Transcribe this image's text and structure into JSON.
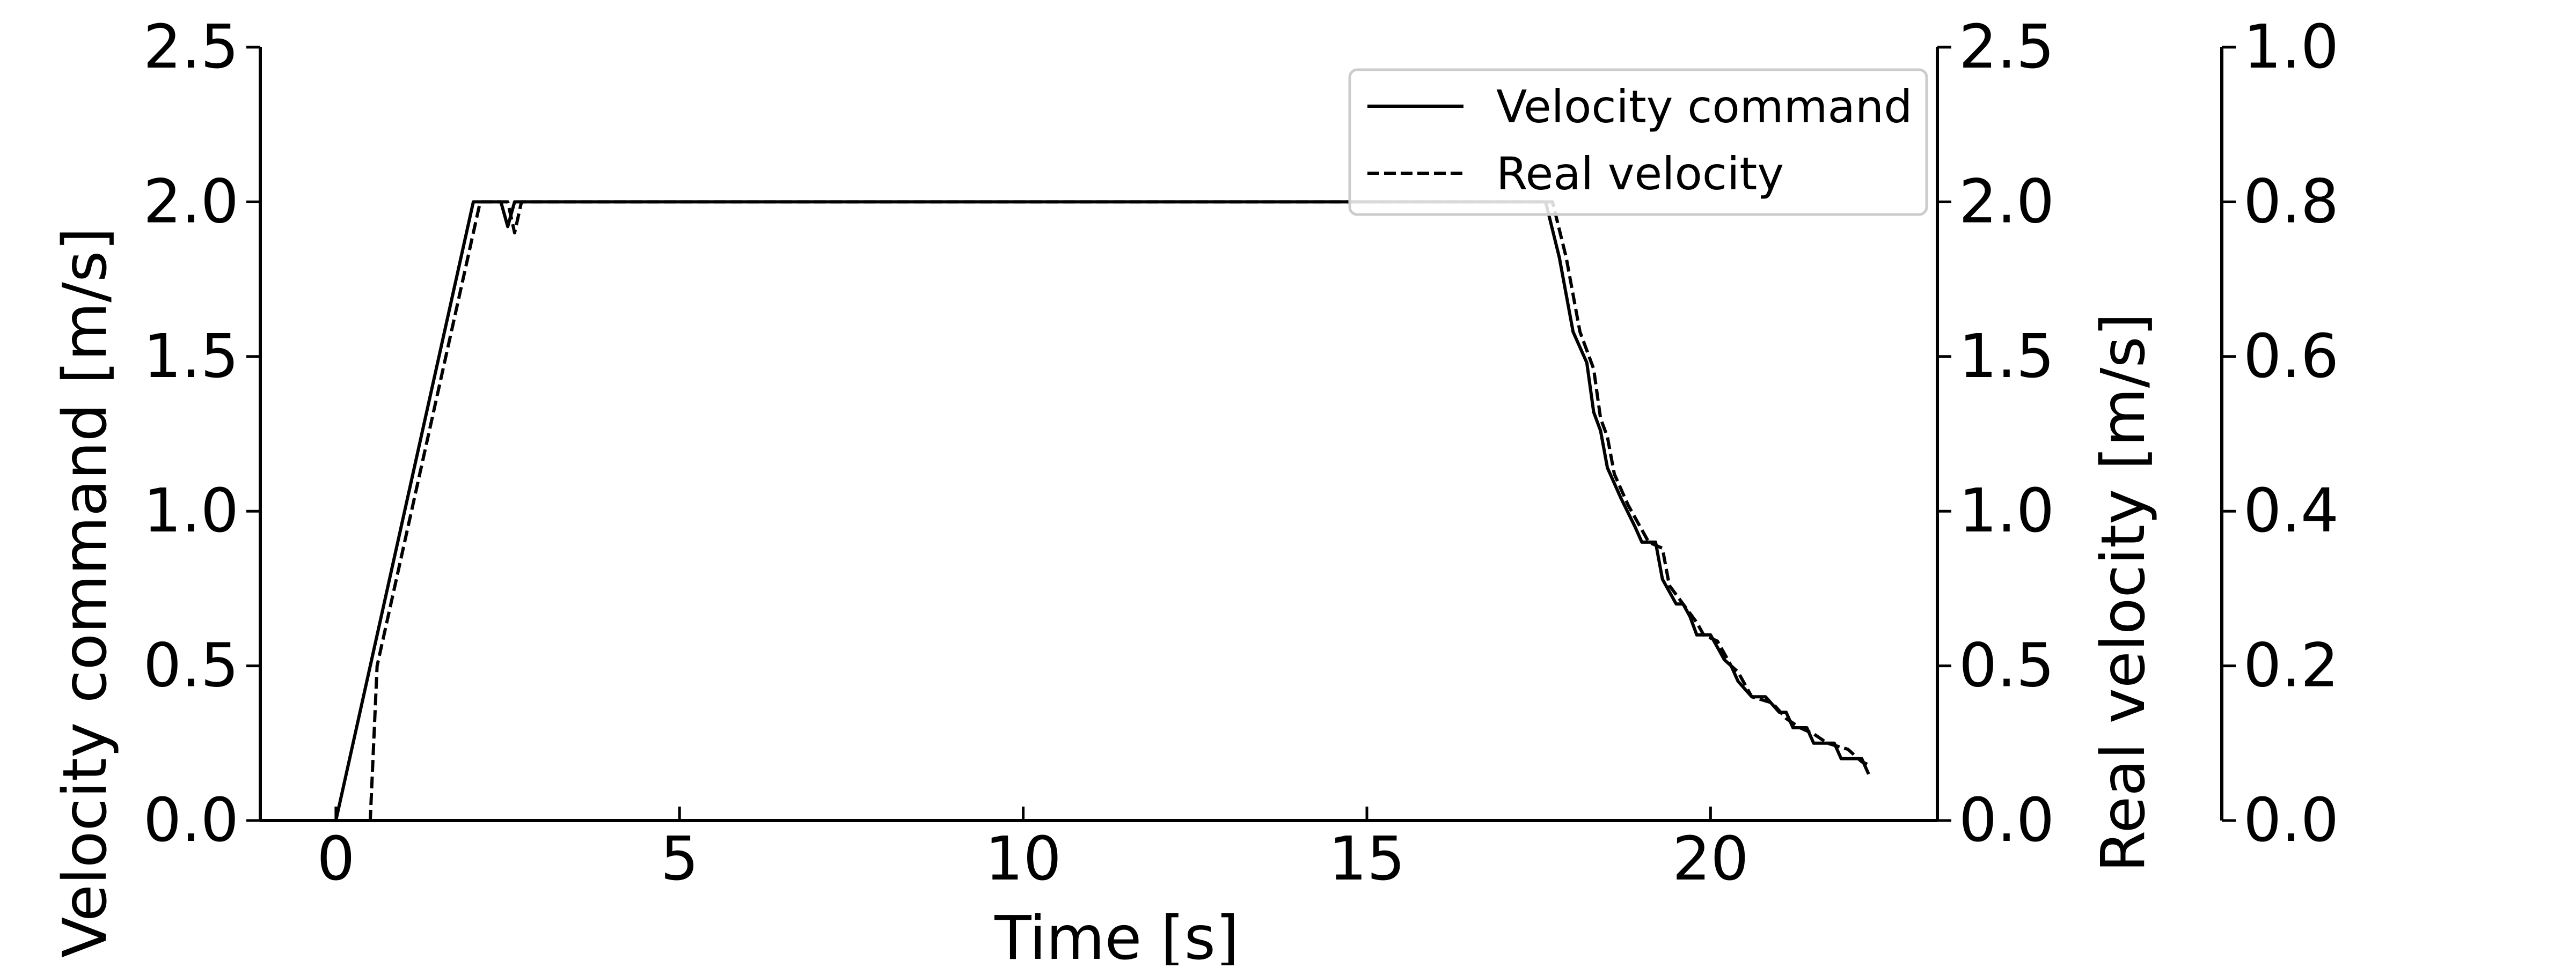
{
  "chart_data": {
    "type": "line",
    "title": "",
    "xlabel": "Time [s]",
    "ylabel": "Velocity command [m/s]",
    "ylabel_right": "Real velocity [m/s]",
    "xlim": [
      -1.1,
      23.3
    ],
    "ylim": [
      0,
      2.5
    ],
    "ylim_right": [
      0,
      2.5
    ],
    "ylim_outer": [
      0,
      1.0
    ],
    "x_ticks": [
      "0",
      "5",
      "10",
      "15",
      "20"
    ],
    "y_ticks": [
      "0.0",
      "0.5",
      "1.0",
      "1.5",
      "2.0",
      "2.5"
    ],
    "y_right_ticks": [
      "0.0",
      "0.5",
      "1.0",
      "1.5",
      "2.0",
      "2.5"
    ],
    "y_outer_ticks": [
      "0.0",
      "0.2",
      "0.4",
      "0.6",
      "0.8",
      "1.0"
    ],
    "grid": false,
    "legend": {
      "position": "top-right"
    },
    "series": [
      {
        "name": "Velocity command",
        "style": "solid",
        "color": "#000000",
        "points": [
          [
            0.0,
            0.0
          ],
          [
            2.0,
            2.0
          ],
          [
            2.4,
            2.0
          ],
          [
            2.5,
            1.92
          ],
          [
            2.6,
            2.0
          ],
          [
            17.6,
            2.0
          ],
          [
            17.8,
            1.82
          ],
          [
            18.0,
            1.58
          ],
          [
            18.2,
            1.48
          ],
          [
            18.3,
            1.32
          ],
          [
            18.4,
            1.26
          ],
          [
            18.5,
            1.14
          ],
          [
            18.7,
            1.04
          ],
          [
            18.9,
            0.95
          ],
          [
            19.0,
            0.9
          ],
          [
            19.2,
            0.9
          ],
          [
            19.3,
            0.78
          ],
          [
            19.5,
            0.7
          ],
          [
            19.6,
            0.7
          ],
          [
            19.7,
            0.66
          ],
          [
            19.8,
            0.6
          ],
          [
            20.0,
            0.6
          ],
          [
            20.2,
            0.52
          ],
          [
            20.3,
            0.5
          ],
          [
            20.4,
            0.45
          ],
          [
            20.6,
            0.4
          ],
          [
            20.8,
            0.4
          ],
          [
            21.0,
            0.35
          ],
          [
            21.1,
            0.35
          ],
          [
            21.2,
            0.3
          ],
          [
            21.4,
            0.3
          ],
          [
            21.5,
            0.25
          ],
          [
            21.8,
            0.25
          ],
          [
            21.9,
            0.2
          ],
          [
            22.2,
            0.2
          ],
          [
            22.3,
            0.15
          ]
        ]
      },
      {
        "name": "Real velocity",
        "style": "dashed",
        "color": "#000000",
        "points": [
          [
            0.0,
            0.0
          ],
          [
            0.5,
            0.0
          ],
          [
            0.6,
            0.5
          ],
          [
            2.1,
            2.0
          ],
          [
            2.5,
            2.0
          ],
          [
            2.6,
            1.9
          ],
          [
            2.7,
            2.0
          ],
          [
            17.7,
            2.0
          ],
          [
            17.9,
            1.82
          ],
          [
            18.1,
            1.58
          ],
          [
            18.3,
            1.46
          ],
          [
            18.4,
            1.3
          ],
          [
            18.5,
            1.24
          ],
          [
            18.6,
            1.12
          ],
          [
            18.8,
            1.02
          ],
          [
            19.0,
            0.94
          ],
          [
            19.1,
            0.9
          ],
          [
            19.3,
            0.88
          ],
          [
            19.4,
            0.76
          ],
          [
            19.6,
            0.7
          ],
          [
            19.8,
            0.64
          ],
          [
            19.9,
            0.6
          ],
          [
            20.1,
            0.58
          ],
          [
            20.3,
            0.5
          ],
          [
            20.4,
            0.48
          ],
          [
            20.6,
            0.4
          ],
          [
            20.9,
            0.38
          ],
          [
            21.1,
            0.33
          ],
          [
            21.3,
            0.3
          ],
          [
            21.5,
            0.28
          ],
          [
            21.7,
            0.25
          ],
          [
            22.0,
            0.23
          ],
          [
            22.2,
            0.19
          ],
          [
            22.3,
            0.18
          ]
        ]
      }
    ]
  }
}
